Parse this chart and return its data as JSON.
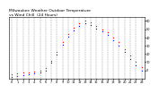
{
  "title1": "Milwaukee Weather Outdoor Temperature",
  "title2": "vs Wind Chill  (24 Hours)",
  "title_fontsize": 3.2,
  "background_color": "#ffffff",
  "temp_color": "#ff0000",
  "wind_chill_color": "#0000ff",
  "marker_size": 0.8,
  "hours": [
    0,
    1,
    2,
    3,
    4,
    5,
    6,
    7,
    8,
    9,
    10,
    11,
    12,
    13,
    14,
    15,
    16,
    17,
    18,
    19,
    20,
    21,
    22,
    23
  ],
  "temperature": [
    -5,
    -4,
    -3,
    -2,
    -1,
    0,
    3,
    12,
    22,
    34,
    44,
    52,
    57,
    60,
    58,
    54,
    50,
    46,
    40,
    34,
    26,
    18,
    10,
    4
  ],
  "wind_chill": [
    -8,
    -7,
    -6,
    -5,
    -4,
    -3,
    0,
    9,
    19,
    31,
    41,
    49,
    54,
    57,
    55,
    51,
    47,
    43,
    37,
    30,
    22,
    14,
    6,
    0
  ],
  "ylim": [
    -10,
    65
  ],
  "xlim": [
    -0.5,
    23.5
  ],
  "yticks": [
    0,
    10,
    20,
    30,
    40,
    50,
    60
  ],
  "xtick_positions": [
    0,
    1,
    2,
    3,
    4,
    5,
    6,
    7,
    8,
    9,
    10,
    11,
    12,
    13,
    14,
    15,
    16,
    17,
    18,
    19,
    20,
    21,
    22,
    23
  ],
  "xlabel_labels": [
    "0",
    "1",
    "2",
    "3",
    "4",
    "5",
    "6",
    "7",
    "8",
    "9",
    "10",
    "11",
    "12",
    "13",
    "14",
    "15",
    "16",
    "17",
    "18",
    "19",
    "20",
    "21",
    "22",
    "23"
  ],
  "tick_fontsize": 2.5,
  "grid_color": "#999999",
  "grid_linestyle": "--",
  "grid_linewidth": 0.35,
  "spine_linewidth": 0.4
}
